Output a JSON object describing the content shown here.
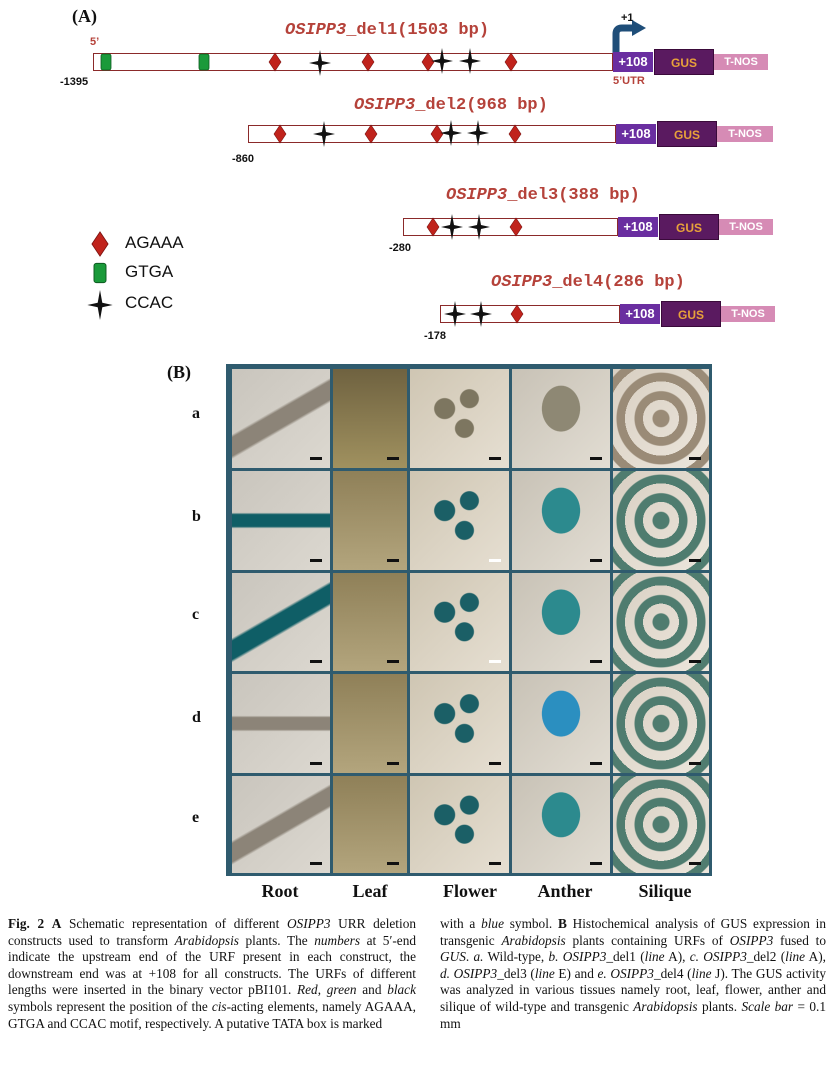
{
  "panel_a": {
    "label": "(A)",
    "constructs": [
      {
        "title_italic": "OSIPP3",
        "title_rest": "_del1(1503 bp)",
        "start": "-1395"
      },
      {
        "title_italic": "OSIPP3",
        "title_rest": "_del2(968 bp)",
        "start": "-860"
      },
      {
        "title_italic": "OSIPP3",
        "title_rest": "_del3(388 bp)",
        "start": "-280"
      },
      {
        "title_italic": "OSIPP3",
        "title_rest": "_del4(286 bp)",
        "start": "-178"
      }
    ],
    "plus108": "+108",
    "gus": "GUS",
    "tnos": "T-NOS",
    "five_prime": "5’",
    "utr": "5’UTR",
    "tss": "+1",
    "legend": [
      {
        "symbol": "red-diamond",
        "label": "AGAAA"
      },
      {
        "symbol": "green-box",
        "label": "GTGA"
      },
      {
        "symbol": "black-star",
        "label": "CCAC"
      }
    ],
    "colors": {
      "agaaa": "#c0231c",
      "gtga": "#1a9a3a",
      "ccac": "#111111",
      "promoter_border": "#8b2a2a",
      "plus108": "#6a2ea0",
      "gus": "#5a1a60",
      "tnos": "#d68bb5"
    }
  },
  "panel_b": {
    "label": "(B)",
    "rows": [
      "a",
      "b",
      "c",
      "d",
      "e"
    ],
    "columns": [
      "Root",
      "Leaf",
      "Flower",
      "Anther",
      "Silique"
    ]
  },
  "caption": {
    "fig": "Fig. 2",
    "left": [
      {
        "t": "b",
        "v": "A"
      },
      {
        "t": "n",
        "v": " Schematic representation of different "
      },
      {
        "t": "i",
        "v": "OSIPP3"
      },
      {
        "t": "n",
        "v": " URR deletion constructs used to transform "
      },
      {
        "t": "i",
        "v": "Arabidopsis"
      },
      {
        "t": "n",
        "v": " plants. The "
      },
      {
        "t": "i",
        "v": "numbers"
      },
      {
        "t": "n",
        "v": " at 5′-end indicate the upstream end of the URF present in each construct, the downstream end was at +108 for all constructs. The URFs of different lengths were inserted in the binary vector pBI101. "
      },
      {
        "t": "i",
        "v": "Red"
      },
      {
        "t": "n",
        "v": ", "
      },
      {
        "t": "i",
        "v": "green"
      },
      {
        "t": "n",
        "v": " and "
      },
      {
        "t": "i",
        "v": "black"
      },
      {
        "t": "n",
        "v": " symbols represent the position of the "
      },
      {
        "t": "i",
        "v": "cis"
      },
      {
        "t": "n",
        "v": "-acting elements, namely AGAAA, GTGA and CCAC motif, respectively. A putative TATA box is marked"
      }
    ],
    "right": [
      {
        "t": "n",
        "v": "with a "
      },
      {
        "t": "i",
        "v": "blue"
      },
      {
        "t": "n",
        "v": " symbol. "
      },
      {
        "t": "b",
        "v": "B"
      },
      {
        "t": "n",
        "v": " Histochemical analysis of GUS expression in transgenic "
      },
      {
        "t": "i",
        "v": "Arabidopsis"
      },
      {
        "t": "n",
        "v": " plants containing URFs of "
      },
      {
        "t": "i",
        "v": "OSIPP3"
      },
      {
        "t": "n",
        "v": " fused to "
      },
      {
        "t": "i",
        "v": "GUS"
      },
      {
        "t": "n",
        "v": ". "
      },
      {
        "t": "i",
        "v": "a."
      },
      {
        "t": "n",
        "v": " Wild-type, "
      },
      {
        "t": "i",
        "v": "b. OSIPP3"
      },
      {
        "t": "n",
        "v": "_del1 ("
      },
      {
        "t": "i",
        "v": "line"
      },
      {
        "t": "n",
        "v": " A), "
      },
      {
        "t": "i",
        "v": "c. OSIPP3"
      },
      {
        "t": "n",
        "v": "_del2 ("
      },
      {
        "t": "i",
        "v": "line"
      },
      {
        "t": "n",
        "v": " A), "
      },
      {
        "t": "i",
        "v": "d. OSIPP3"
      },
      {
        "t": "n",
        "v": "_del3 ("
      },
      {
        "t": "i",
        "v": "line"
      },
      {
        "t": "n",
        "v": " E) and "
      },
      {
        "t": "i",
        "v": "e. OSIPP3"
      },
      {
        "t": "n",
        "v": "_del4 ("
      },
      {
        "t": "i",
        "v": "line"
      },
      {
        "t": "n",
        "v": " J). The GUS activity was analyzed in various tissues namely root, leaf, flower, anther and silique of wild-type and transgenic "
      },
      {
        "t": "i",
        "v": "Arabidopsis"
      },
      {
        "t": "n",
        "v": " plants. "
      },
      {
        "t": "i",
        "v": "Scale bar"
      },
      {
        "t": "n",
        "v": " = 0.1 mm"
      }
    ]
  }
}
